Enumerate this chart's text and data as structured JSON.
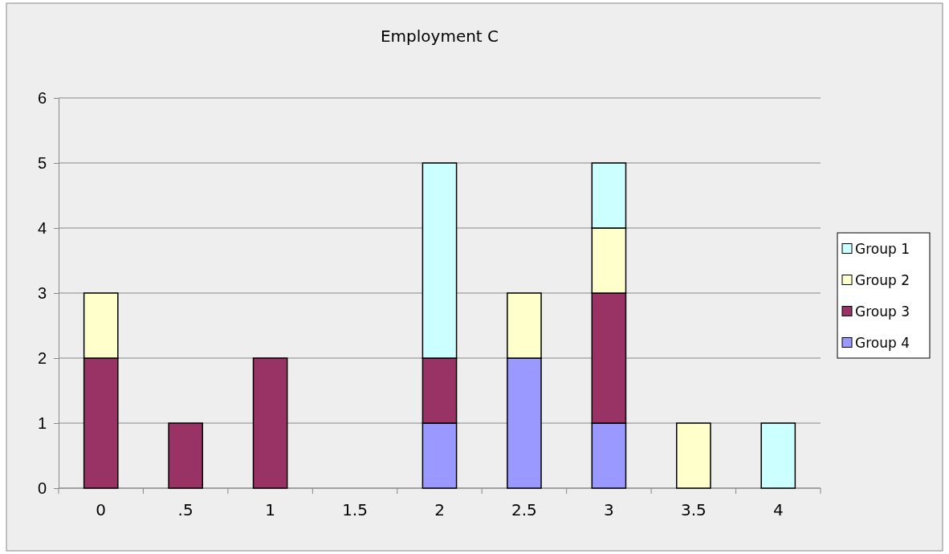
{
  "chart_data": {
    "type": "bar",
    "title": "Employment C",
    "stacked": true,
    "categories": [
      "0",
      ".5",
      "1",
      "1.5",
      "2",
      "2.5",
      "3",
      "3.5",
      "4"
    ],
    "series": [
      {
        "name": "Group 4",
        "color": "#9999ff",
        "values": [
          null,
          null,
          null,
          null,
          1,
          2,
          1,
          null,
          null
        ]
      },
      {
        "name": "Group 3",
        "color": "#993366",
        "values": [
          2,
          1,
          2,
          null,
          1,
          null,
          2,
          null,
          null
        ]
      },
      {
        "name": "Group 2",
        "color": "#ffffcc",
        "values": [
          1,
          null,
          null,
          null,
          null,
          1,
          1,
          1,
          null
        ]
      },
      {
        "name": "Group 1",
        "color": "#ccffff",
        "values": [
          null,
          null,
          null,
          null,
          3,
          null,
          1,
          null,
          1
        ]
      }
    ],
    "ylim": [
      0,
      6
    ],
    "yticks": [
      0,
      1,
      2,
      3,
      4,
      5,
      6
    ],
    "grid": "y",
    "legend": "right"
  }
}
